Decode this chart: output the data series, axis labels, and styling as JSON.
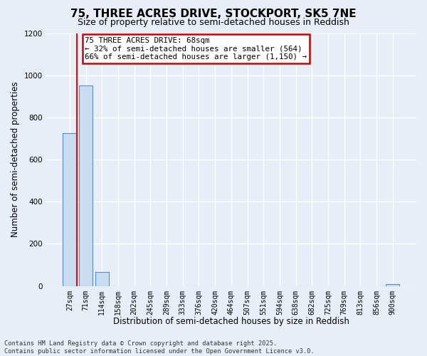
{
  "title": "75, THREE ACRES DRIVE, STOCKPORT, SK5 7NE",
  "subtitle": "Size of property relative to semi-detached houses in Reddish",
  "xlabel": "Distribution of semi-detached houses by size in Reddish",
  "ylabel": "Number of semi-detached properties",
  "categories": [
    "27sqm",
    "71sqm",
    "114sqm",
    "158sqm",
    "202sqm",
    "245sqm",
    "289sqm",
    "333sqm",
    "376sqm",
    "420sqm",
    "464sqm",
    "507sqm",
    "551sqm",
    "594sqm",
    "638sqm",
    "682sqm",
    "725sqm",
    "769sqm",
    "813sqm",
    "856sqm",
    "900sqm"
  ],
  "values": [
    725,
    950,
    65,
    0,
    0,
    0,
    0,
    0,
    0,
    0,
    0,
    0,
    0,
    0,
    0,
    0,
    0,
    0,
    0,
    0,
    10
  ],
  "bar_color": "#c9dcf0",
  "bar_edge_color": "#5b8ec4",
  "red_line_index": 0,
  "ylim": [
    0,
    1200
  ],
  "yticks": [
    0,
    200,
    400,
    600,
    800,
    1000,
    1200
  ],
  "annotation_title": "75 THREE ACRES DRIVE: 68sqm",
  "annotation_line1": "← 32% of semi-detached houses are smaller (564)",
  "annotation_line2": "66% of semi-detached houses are larger (1,150) →",
  "annotation_box_color": "#ffffff",
  "annotation_box_edge": "#cc0000",
  "footer_line1": "Contains HM Land Registry data © Crown copyright and database right 2025.",
  "footer_line2": "Contains public sector information licensed under the Open Government Licence v3.0.",
  "background_color": "#e8eef8",
  "grid_color": "#ffffff",
  "title_fontsize": 11,
  "subtitle_fontsize": 9,
  "tick_fontsize": 7,
  "ylabel_fontsize": 8.5,
  "xlabel_fontsize": 8.5
}
